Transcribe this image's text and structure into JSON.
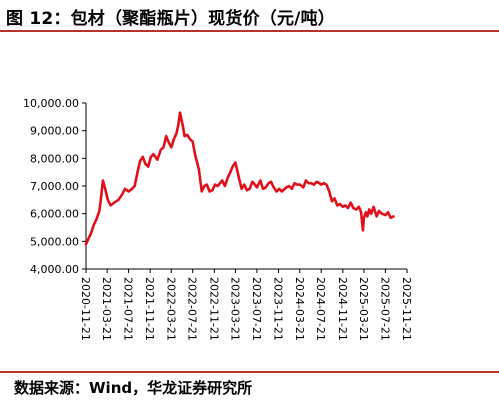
{
  "header": {
    "title": "图 12：包材（聚酯瓶片）现货价（元/吨）"
  },
  "footer": {
    "source": "数据来源：Wind，华龙证券研究所"
  },
  "chart_data": {
    "type": "line",
    "title": "图 12：包材（聚酯瓶片）现货价（元/吨）",
    "xlabel": "",
    "ylabel": "",
    "ylim": [
      4000,
      10000
    ],
    "y_ticks": [
      "4,000.00",
      "5,000.00",
      "6,000.00",
      "7,000.00",
      "8,000.00",
      "9,000.00",
      "10,000.00"
    ],
    "x_ticks": [
      "2020-11-21",
      "2021-03-21",
      "2021-07-21",
      "2021-11-21",
      "2022-03-21",
      "2022-07-21",
      "2022-11-21",
      "2023-03-21",
      "2023-07-21",
      "2023-11-21",
      "2024-03-21",
      "2024-07-21",
      "2024-11-21",
      "2025-03-21",
      "2025-07-21",
      "2025-11-21"
    ],
    "grid": false,
    "legend": "none",
    "line_color": "#e0101b",
    "series": [
      {
        "x": [
          "2020-11-21",
          "2020-12-05",
          "2020-12-20",
          "2021-01-05",
          "2021-01-20",
          "2021-02-05",
          "2021-02-15",
          "2021-02-25",
          "2021-03-10",
          "2021-03-25",
          "2021-04-10",
          "2021-05-01",
          "2021-05-25",
          "2021-06-15",
          "2021-07-01",
          "2021-07-21",
          "2021-08-10",
          "2021-08-25",
          "2021-09-10",
          "2021-09-25",
          "2021-10-10",
          "2021-10-25",
          "2021-11-10",
          "2021-11-25",
          "2021-12-10",
          "2022-01-01",
          "2022-01-20",
          "2022-02-05",
          "2022-02-20",
          "2022-03-05",
          "2022-03-21",
          "2022-04-05",
          "2022-04-20",
          "2022-05-01",
          "2022-05-10",
          "2022-05-25",
          "2022-06-05",
          "2022-06-20",
          "2022-07-05",
          "2022-07-21",
          "2022-08-05",
          "2022-08-25",
          "2022-09-10",
          "2022-09-25",
          "2022-10-10",
          "2022-10-25",
          "2022-11-10",
          "2022-11-25",
          "2022-12-10",
          "2023-01-05",
          "2023-01-20",
          "2023-02-05",
          "2023-02-20",
          "2023-03-05",
          "2023-03-21",
          "2023-04-10",
          "2023-04-25",
          "2023-05-10",
          "2023-05-25",
          "2023-06-10",
          "2023-06-25",
          "2023-07-10",
          "2023-07-21",
          "2023-08-10",
          "2023-08-25",
          "2023-09-10",
          "2023-09-25",
          "2023-10-10",
          "2023-10-25",
          "2023-11-10",
          "2023-11-25",
          "2023-12-10",
          "2024-01-05",
          "2024-01-20",
          "2024-02-05",
          "2024-02-20",
          "2024-03-05",
          "2024-03-21",
          "2024-04-10",
          "2024-04-25",
          "2024-05-10",
          "2024-05-25",
          "2024-06-10",
          "2024-06-25",
          "2024-07-10",
          "2024-07-21",
          "2024-08-05",
          "2024-08-20",
          "2024-09-05",
          "2024-09-20",
          "2024-10-05",
          "2024-10-20",
          "2024-11-05",
          "2024-11-21",
          "2024-12-05",
          "2024-12-20",
          "2025-01-05",
          "2025-01-20",
          "2025-02-05",
          "2025-02-20",
          "2025-03-05",
          "2025-03-15",
          "2025-03-21",
          "2025-04-01",
          "2025-04-10",
          "2025-04-20",
          "2025-05-01",
          "2025-05-15",
          "2025-06-01",
          "2025-06-15",
          "2025-07-01",
          "2025-07-21",
          "2025-08-05",
          "2025-08-20",
          "2025-09-05"
        ],
        "y": [
          4900,
          5100,
          5300,
          5600,
          5800,
          6100,
          6600,
          7200,
          6900,
          6500,
          6300,
          6400,
          6500,
          6700,
          6900,
          6800,
          6900,
          7000,
          7500,
          7900,
          8050,
          7800,
          7700,
          8050,
          8150,
          7950,
          8300,
          8400,
          8800,
          8600,
          8400,
          8700,
          8900,
          9250,
          9650,
          9200,
          8800,
          8850,
          8700,
          8600,
          8100,
          7600,
          6800,
          7000,
          7050,
          6800,
          6850,
          7050,
          7000,
          7200,
          7000,
          7300,
          7500,
          7700,
          7850,
          7300,
          6900,
          7050,
          6850,
          6900,
          7150,
          7050,
          6950,
          7200,
          6900,
          6950,
          7100,
          7150,
          6950,
          6800,
          6900,
          6800,
          6950,
          7000,
          6900,
          7100,
          7050,
          7050,
          6950,
          7200,
          7100,
          7100,
          7050,
          7150,
          7100,
          7050,
          7100,
          7050,
          6800,
          6450,
          6550,
          6300,
          6350,
          6250,
          6300,
          6200,
          6400,
          6200,
          6150,
          6250,
          6050,
          5400,
          5850,
          6050,
          5900,
          6150,
          6000,
          6250,
          5900,
          6100,
          6000,
          5950,
          6050,
          5850,
          5900
        ]
      }
    ]
  }
}
